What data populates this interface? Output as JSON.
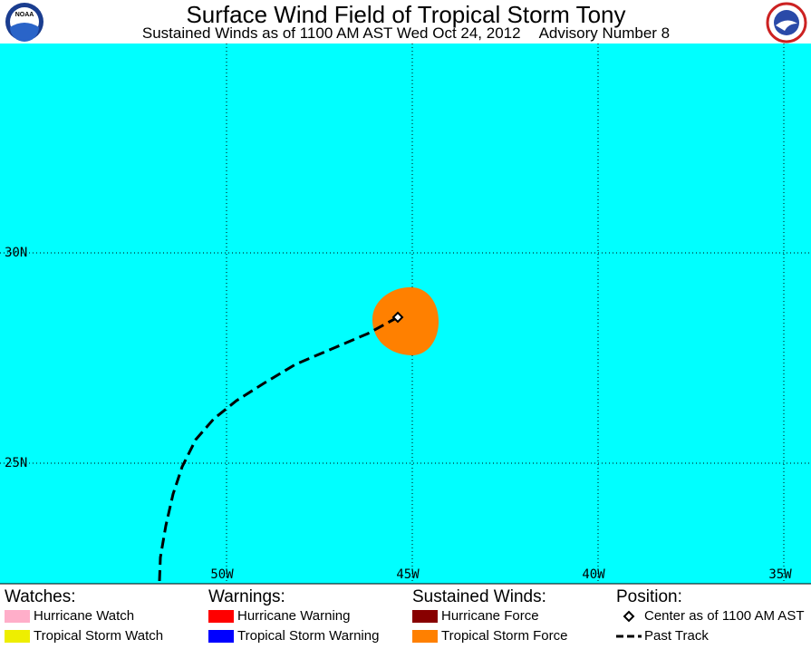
{
  "header": {
    "logo_left": "NOAA",
    "title": "Surface Wind Field of Tropical Storm Tony",
    "subtitle": "Sustained Winds as of 1100 AM AST Wed Oct 24, 2012",
    "advisory": "Advisory Number 8"
  },
  "map": {
    "lat_labels": [
      "30N",
      "25N"
    ],
    "lon_labels": [
      "50W",
      "45W",
      "40W",
      "35W"
    ]
  },
  "legend": {
    "watches": {
      "title": "Watches:",
      "items": [
        "Hurricane Watch",
        "Tropical Storm Watch"
      ]
    },
    "warnings": {
      "title": "Warnings:",
      "items": [
        "Hurricane Warning",
        "Tropical Storm Warning"
      ]
    },
    "winds": {
      "title": "Sustained Winds:",
      "items": [
        "Hurricane Force",
        "Tropical Storm Force"
      ]
    },
    "position": {
      "title": "Position:",
      "items": [
        "Center as of 1100 AM AST",
        "Past Track"
      ]
    }
  }
}
